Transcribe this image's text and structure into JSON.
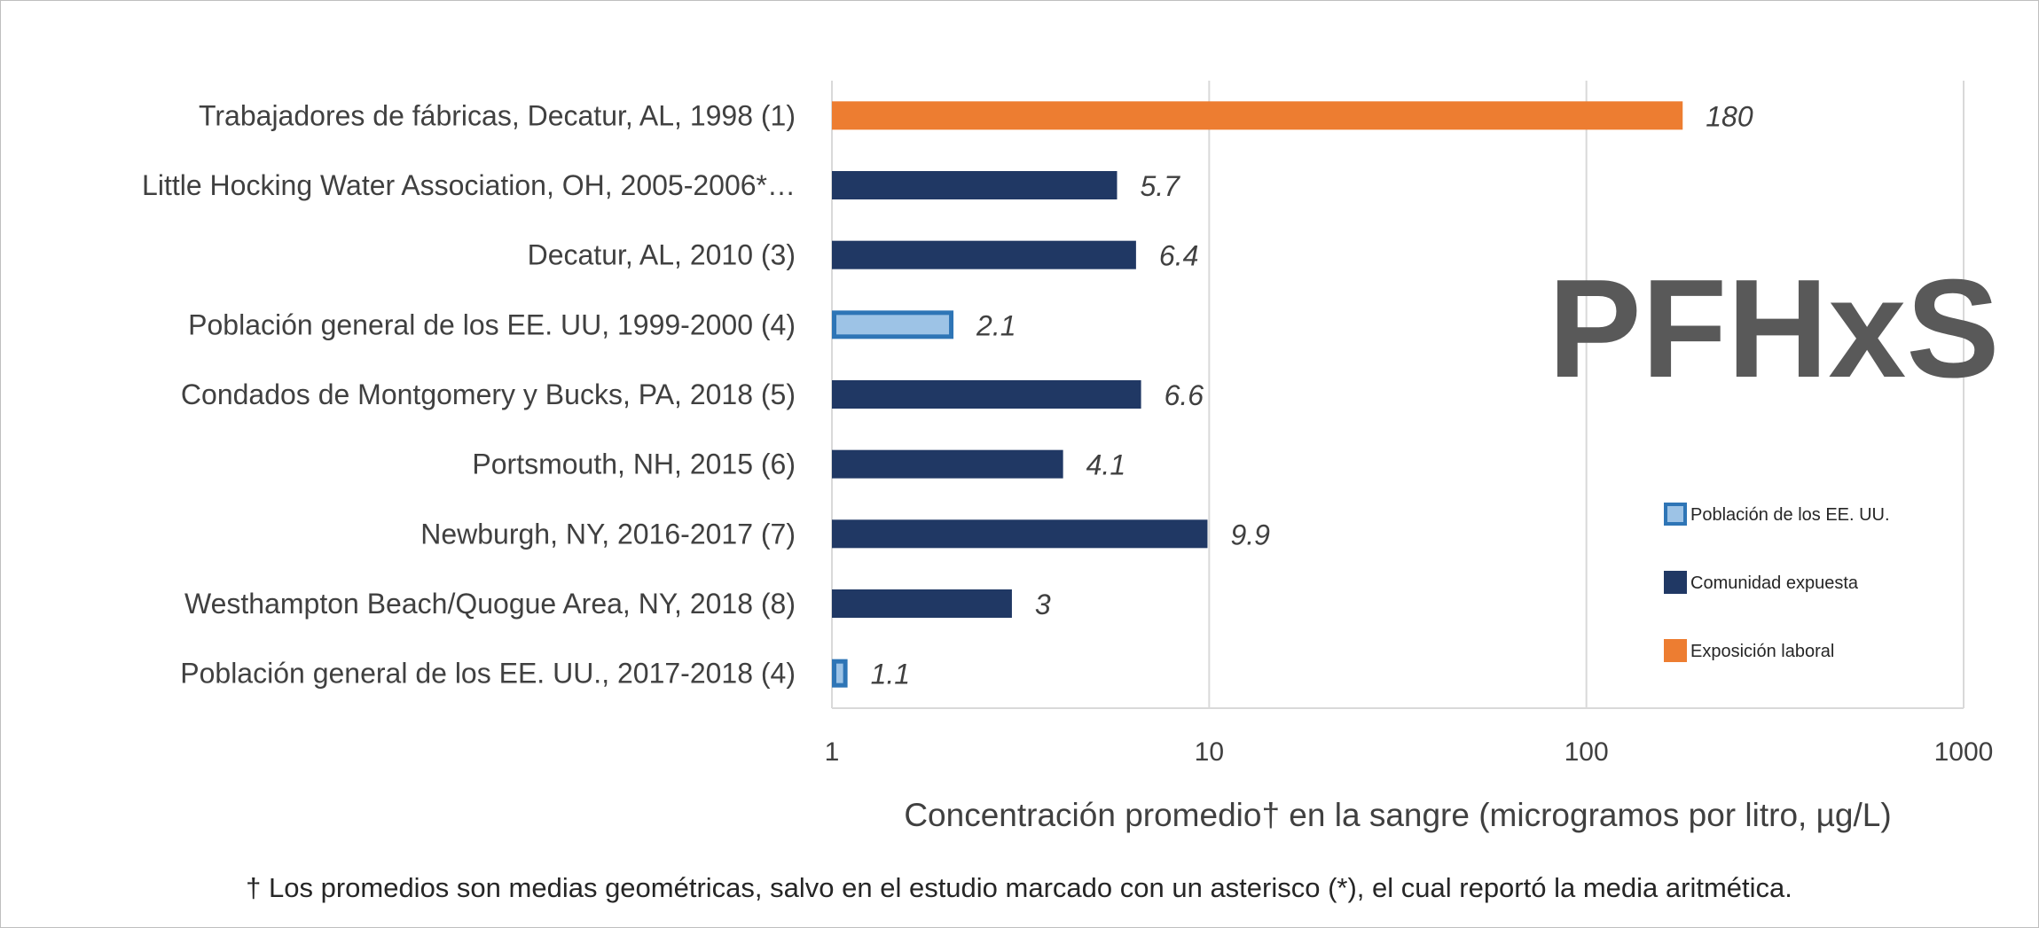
{
  "chart_data": {
    "type": "bar",
    "orientation": "horizontal",
    "title": "PFHxS",
    "xlabel": "Concentración promedio† en la sangre (microgramos por litro, µg/L)",
    "xscale": "log",
    "xlim": [
      1,
      1000
    ],
    "xticks": [
      "1",
      "10",
      "100",
      "1000"
    ],
    "grid": true,
    "legend_position": "right",
    "categories": [
      "Trabajadores de fábricas, Decatur, AL, 1998  (1)",
      "Little Hocking Water Association, OH, 2005-2006*…",
      "Decatur, AL, 2010 (3)",
      "Población general de los EE. UU, 1999-2000  (4)",
      "Condados de Montgomery y Bucks, PA, 2018  (5)",
      "Portsmouth, NH, 2015 (6)",
      "Newburgh, NY, 2016-2017 (7)",
      "Westhampton Beach/Quogue Area, NY, 2018 (8)",
      "Población general de los EE. UU., 2017-2018  (4)"
    ],
    "values": [
      180,
      5.7,
      6.4,
      2.1,
      6.6,
      4.1,
      9.9,
      3,
      1.1
    ],
    "data_labels": [
      "180",
      "5.7",
      "6.4",
      "2.1",
      "6.6",
      "4.1",
      "9.9",
      "3",
      "1.1"
    ],
    "groups": [
      "labor",
      "community",
      "community",
      "us",
      "community",
      "community",
      "community",
      "community",
      "us"
    ],
    "legend": [
      {
        "key": "us",
        "label": "Población de los EE. UU.",
        "fill": "#9dc3e6",
        "stroke": "#2e75b6"
      },
      {
        "key": "community",
        "label": "Comunidad expuesta",
        "fill": "#203864",
        "stroke": "#203864"
      },
      {
        "key": "labor",
        "label": "Exposición laboral",
        "fill": "#ed7d31",
        "stroke": "#ed7d31"
      }
    ],
    "footnote": "† Los promedios son medias geométricas, salvo en el estudio marcado con un asterisco (*), el cual reportó la media aritmética."
  }
}
